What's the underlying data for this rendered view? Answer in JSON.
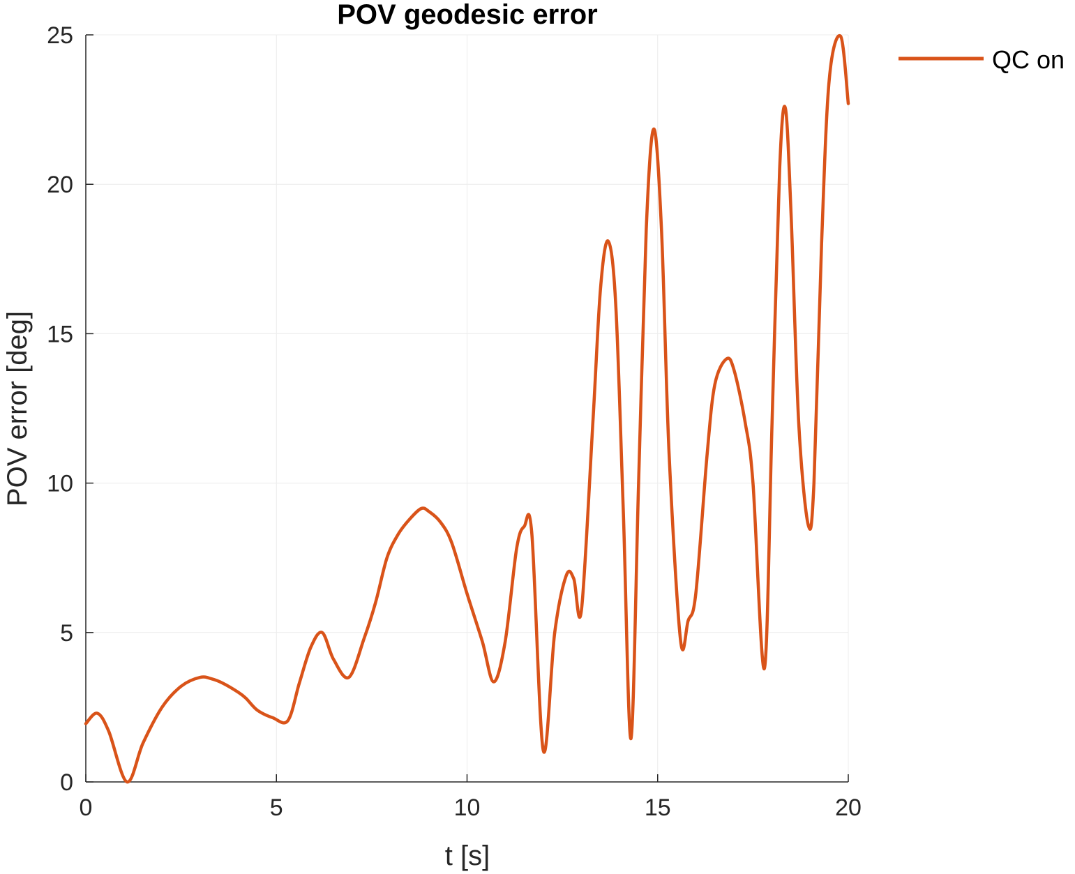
{
  "chart_data": {
    "type": "line",
    "title": "POV geodesic error",
    "xlabel": "t [s]",
    "ylabel": "POV error [deg]",
    "xlim": [
      0,
      20
    ],
    "ylim": [
      0,
      25
    ],
    "xticks": [
      0,
      5,
      10,
      15,
      20
    ],
    "yticks": [
      0,
      5,
      10,
      15,
      20,
      25
    ],
    "grid": true,
    "legend": "top-right",
    "series": [
      {
        "name": "QC on",
        "color": "#D95319",
        "x": [
          0,
          0.3,
          0.6,
          1.08,
          1.5,
          2.0,
          2.5,
          3.0,
          3.3,
          3.6,
          4.0,
          4.2,
          4.5,
          4.9,
          5.3,
          5.6,
          5.9,
          6.2,
          6.5,
          6.9,
          7.3,
          7.6,
          7.9,
          8.2,
          8.5,
          8.8,
          9.0,
          9.3,
          9.6,
          10.0,
          10.4,
          10.7,
          11.0,
          11.3,
          11.5,
          11.7,
          12.0,
          12.3,
          12.6,
          12.8,
          13.0,
          13.3,
          13.5,
          13.7,
          13.9,
          14.1,
          14.3,
          14.5,
          14.7,
          14.9,
          15.1,
          15.3,
          15.6,
          15.8,
          16.0,
          16.3,
          16.5,
          16.8,
          17.0,
          17.3,
          17.5,
          17.8,
          18.0,
          18.2,
          18.35,
          18.5,
          18.7,
          18.95,
          19.1,
          19.3,
          19.5,
          19.8,
          20.0
        ],
        "y": [
          1.95,
          2.3,
          1.7,
          0.0,
          1.3,
          2.5,
          3.2,
          3.5,
          3.45,
          3.3,
          3.0,
          2.8,
          2.4,
          2.15,
          2.05,
          3.3,
          4.5,
          5.0,
          4.1,
          3.5,
          4.8,
          6.0,
          7.5,
          8.3,
          8.8,
          9.15,
          9.05,
          8.7,
          8.0,
          6.3,
          4.7,
          3.35,
          4.7,
          7.8,
          8.55,
          8.3,
          1.05,
          5.0,
          6.9,
          6.8,
          5.75,
          12.0,
          16.5,
          18.1,
          16.0,
          9.0,
          1.45,
          10.0,
          18.5,
          21.85,
          18.5,
          11.0,
          4.75,
          5.4,
          6.3,
          11.0,
          13.3,
          14.15,
          13.8,
          12.0,
          10.0,
          3.8,
          12.0,
          20.5,
          22.55,
          19.0,
          12.0,
          8.6,
          10.0,
          18.0,
          23.5,
          24.95,
          22.7
        ]
      }
    ]
  }
}
